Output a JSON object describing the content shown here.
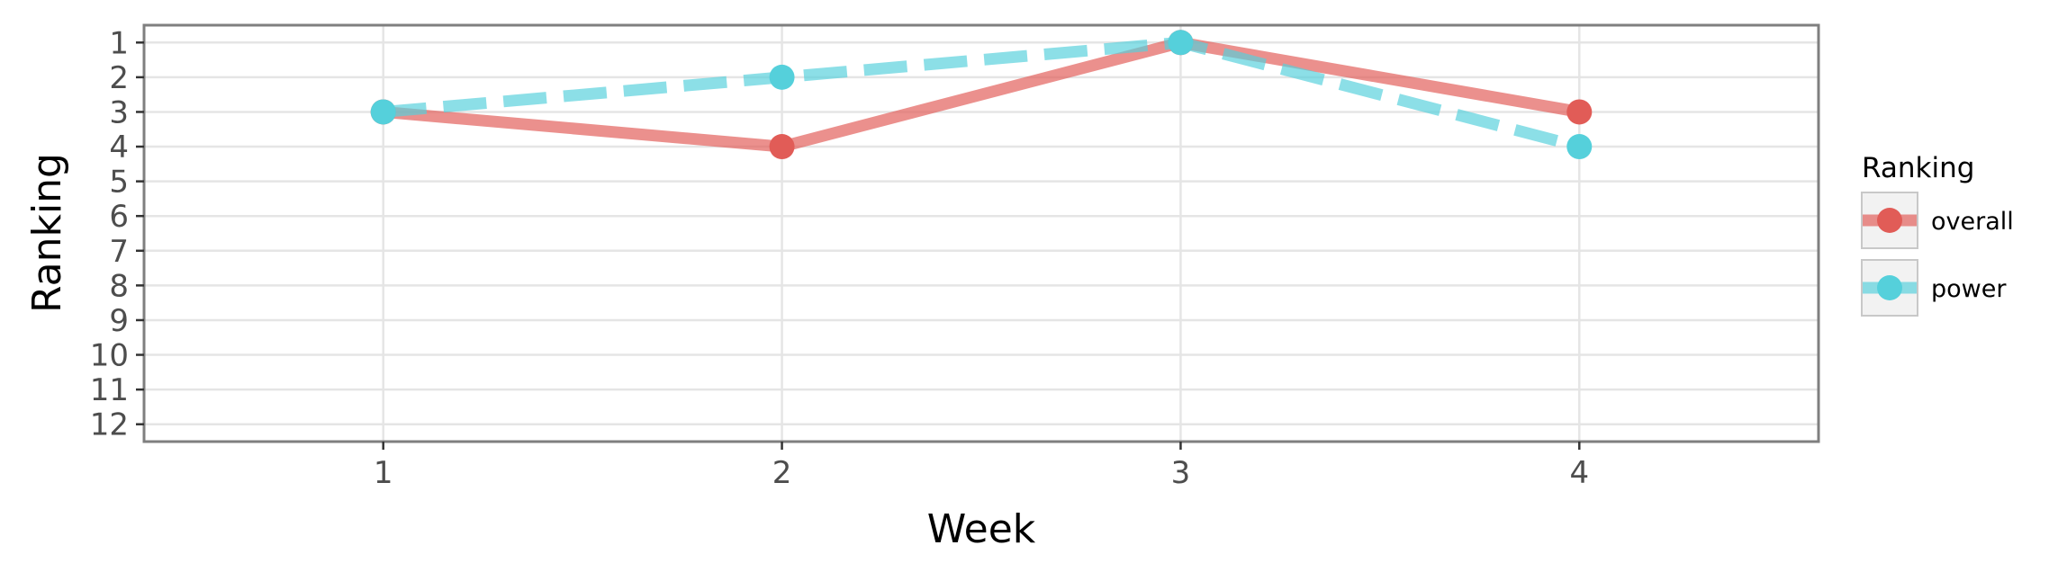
{
  "chart_data": {
    "type": "line",
    "title": "",
    "xlabel": "Week",
    "ylabel": "Ranking",
    "x": [
      1,
      2,
      3,
      4
    ],
    "x_ticks": [
      "1",
      "2",
      "3",
      "4"
    ],
    "xlim": [
      0.4,
      4.6
    ],
    "y_ticks": [
      "1",
      "2",
      "3",
      "4",
      "5",
      "6",
      "7",
      "8",
      "9",
      "10",
      "11",
      "12"
    ],
    "ylim": [
      12.5,
      0.5
    ],
    "y_reversed": true,
    "grid": true,
    "legend": {
      "title": "Ranking",
      "position": "right"
    },
    "series": [
      {
        "name": "overall",
        "values": [
          3,
          4,
          1,
          3
        ],
        "color": "#e15c57",
        "line_style": "solid"
      },
      {
        "name": "power",
        "values": [
          3,
          2,
          1,
          4
        ],
        "color": "#55d0db",
        "line_style": "dashed"
      }
    ]
  }
}
